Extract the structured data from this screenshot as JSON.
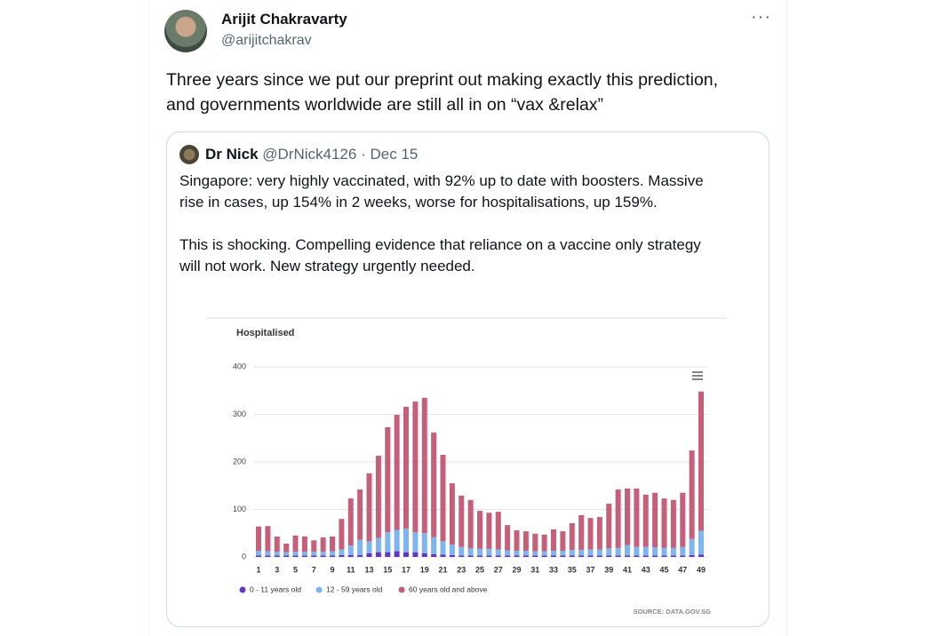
{
  "tweet": {
    "name": "Arijit Chakravarty",
    "handle": "@arijitchakrav",
    "more": "···",
    "text_lines": [
      "Three years since we put our preprint out making exactly this prediction,",
      "and governments worldwide are still all in on “vax &relax”"
    ]
  },
  "quote": {
    "name": "Dr Nick",
    "handle": "@DrNick4126",
    "separator": "·",
    "date": "Dec 15",
    "text_lines": [
      "Singapore: very highly vaccinated, with 92% up to date with boosters.  Massive",
      "rise in cases, up 154% in 2 weeks, worse for hospitalisations, up 159%.",
      "This is shocking.  Compelling evidence that reliance on a vaccine only strategy",
      "will not work. New strategy urgently needed."
    ]
  },
  "chart_data": {
    "type": "stacked_bar",
    "title": "Hospitalised",
    "source": "SOURCE: DATA.GOV.SG",
    "categories": [
      "1",
      null,
      "3",
      null,
      "5",
      null,
      "7",
      null,
      "9",
      null,
      "11",
      null,
      "13",
      null,
      "15",
      null,
      "17",
      null,
      "19",
      null,
      "21",
      null,
      "23",
      null,
      "25",
      null,
      "27",
      null,
      "29",
      null,
      "31",
      null,
      "33",
      null,
      "35",
      null,
      "37",
      null,
      "39",
      null,
      "41",
      null,
      "43",
      null,
      "45",
      null,
      "47",
      null,
      "49"
    ],
    "series": [
      {
        "name": "0 - 11 years old",
        "color": "#6236c4",
        "values": [
          3,
          3,
          3,
          3,
          3,
          3,
          3,
          3,
          3,
          4,
          4,
          4,
          8,
          10,
          10,
          12,
          10,
          10,
          8,
          6,
          5,
          4,
          3,
          3,
          3,
          3,
          3,
          3,
          3,
          3,
          3,
          3,
          3,
          3,
          3,
          3,
          3,
          3,
          3,
          3,
          3,
          3,
          3,
          3,
          3,
          3,
          3,
          4,
          5
        ]
      },
      {
        "name": "12 - 59 years old",
        "color": "#7fb5ee",
        "values": [
          10,
          9,
          8,
          7,
          8,
          8,
          8,
          8,
          9,
          12,
          20,
          32,
          25,
          30,
          42,
          45,
          50,
          42,
          42,
          36,
          28,
          22,
          18,
          15,
          14,
          14,
          13,
          11,
          10,
          10,
          9,
          9,
          10,
          10,
          12,
          12,
          13,
          13,
          15,
          16,
          22,
          18,
          18,
          17,
          16,
          16,
          18,
          34,
          50
        ]
      },
      {
        "name": "60 years old and above",
        "color": "#c6607a",
        "values": [
          51,
          53,
          32,
          18,
          34,
          32,
          24,
          30,
          31,
          64,
          99,
          106,
          143,
          173,
          221,
          242,
          256,
          275,
          285,
          220,
          182,
          129,
          108,
          102,
          80,
          76,
          79,
          53,
          43,
          41,
          37,
          35,
          45,
          41,
          56,
          73,
          66,
          68,
          94,
          123,
          119,
          123,
          110,
          115,
          104,
          101,
          114,
          186,
          293
        ]
      }
    ],
    "ylim": [
      0,
      400
    ],
    "yticks": [
      0,
      100,
      200,
      300,
      400
    ],
    "grid": true,
    "legend": "bottom"
  }
}
